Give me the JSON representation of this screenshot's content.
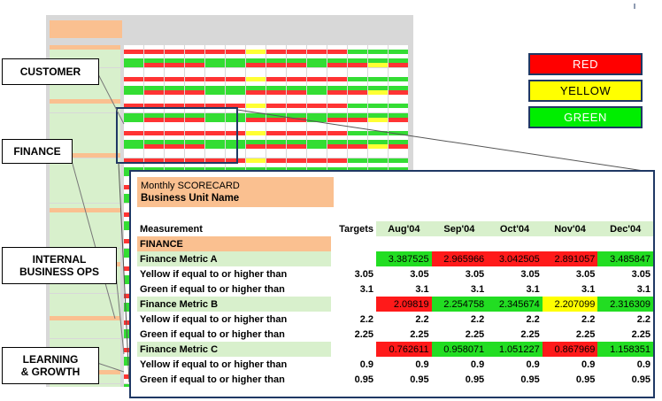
{
  "labels": {
    "customer": "CUSTOMER",
    "finance": "FINANCE",
    "internal_line1": "INTERNAL",
    "internal_line2": "BUSINESS OPS",
    "learning_line1": "LEARNING",
    "learning_line2": "& GROWTH"
  },
  "legend": [
    {
      "label": "RED",
      "color": "#ff0000",
      "text_color": "#ffffff"
    },
    {
      "label": "YELLOW",
      "color": "#ffff00",
      "text_color": "#000000"
    },
    {
      "label": "GREEN",
      "color": "#00ee00",
      "text_color": "#ffffff"
    }
  ],
  "scorecard": {
    "title_line1": "Monthly SCORECARD",
    "title_line2": "Business Unit Name",
    "header": {
      "measurement": "Measurement",
      "targets": "Targets",
      "months": [
        "Aug'04",
        "Sep'04",
        "Oct'04",
        "Nov'04",
        "Dec'04"
      ]
    },
    "section": "FINANCE",
    "metrics": [
      {
        "name": "Finance Metric A",
        "values": [
          "3.387525",
          "2.965966",
          "3.042505",
          "2.891057",
          "3.485847"
        ],
        "status": [
          "green",
          "red",
          "red",
          "red",
          "green"
        ],
        "yellow_label": "Yellow if equal to or higher than",
        "yellow_target": "3.05",
        "yellow_values": [
          "3.05",
          "3.05",
          "3.05",
          "3.05",
          "3.05"
        ],
        "green_label": "Green if equal to or higher than",
        "green_target": "3.1",
        "green_values": [
          "3.1",
          "3.1",
          "3.1",
          "3.1",
          "3.1"
        ]
      },
      {
        "name": "Finance Metric B",
        "values": [
          "2.09819",
          "2.254758",
          "2.345674",
          "2.207099",
          "2.316309"
        ],
        "status": [
          "red",
          "green",
          "green",
          "yellow",
          "green"
        ],
        "yellow_label": "Yellow if equal to or higher than",
        "yellow_target": "2.2",
        "yellow_values": [
          "2.2",
          "2.2",
          "2.2",
          "2.2",
          "2.2"
        ],
        "green_label": "Green if equal to or higher than",
        "green_target": "2.25",
        "green_values": [
          "2.25",
          "2.25",
          "2.25",
          "2.25",
          "2.25"
        ]
      },
      {
        "name": "Finance Metric C",
        "values": [
          "0.762611",
          "0.958071",
          "1.051227",
          "0.867969",
          "1.158351"
        ],
        "status": [
          "red",
          "green",
          "green",
          "red",
          "green"
        ],
        "yellow_label": "Yellow if equal to or higher than",
        "yellow_target": "0.9",
        "yellow_values": [
          "0.9",
          "0.9",
          "0.9",
          "0.9",
          "0.9"
        ],
        "green_label": "Green if equal to or higher than",
        "green_target": "0.95",
        "green_values": [
          "0.95",
          "0.95",
          "0.95",
          "0.95",
          "0.95"
        ]
      }
    ]
  },
  "colors": {
    "green": "#22dd22",
    "red": "#ff1a1a",
    "yellow": "#ffff00",
    "header_fill": "#d8f0cc",
    "section_fill": "#fac090",
    "frame": "#1f3864"
  }
}
